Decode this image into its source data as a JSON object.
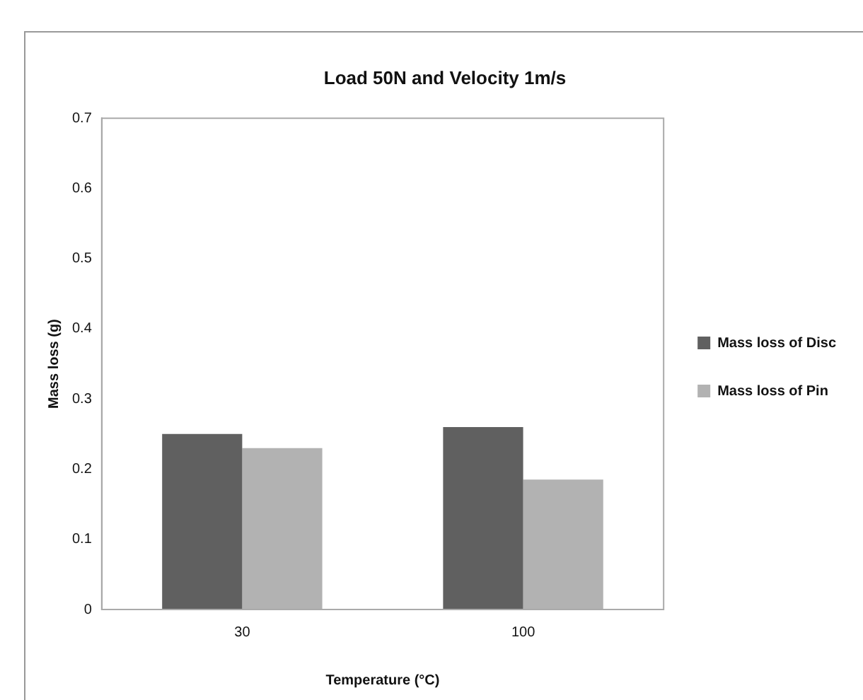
{
  "chart_data": {
    "type": "bar",
    "title": "Load 50N and Velocity 1m/s",
    "xlabel": "Temperature (°C)",
    "ylabel": "Mass loss (g)",
    "categories": [
      "30",
      "100"
    ],
    "series": [
      {
        "name": "Mass loss of Disc",
        "color": "#606060",
        "values": [
          0.25,
          0.26
        ]
      },
      {
        "name": "Mass loss of Pin",
        "color": "#b2b2b2",
        "values": [
          0.23,
          0.185
        ]
      }
    ],
    "ylim": [
      0,
      0.7
    ],
    "yticks": [
      0,
      0.1,
      0.2,
      0.3,
      0.4,
      0.5,
      0.6,
      0.7
    ],
    "grid": false,
    "legend": "right"
  }
}
